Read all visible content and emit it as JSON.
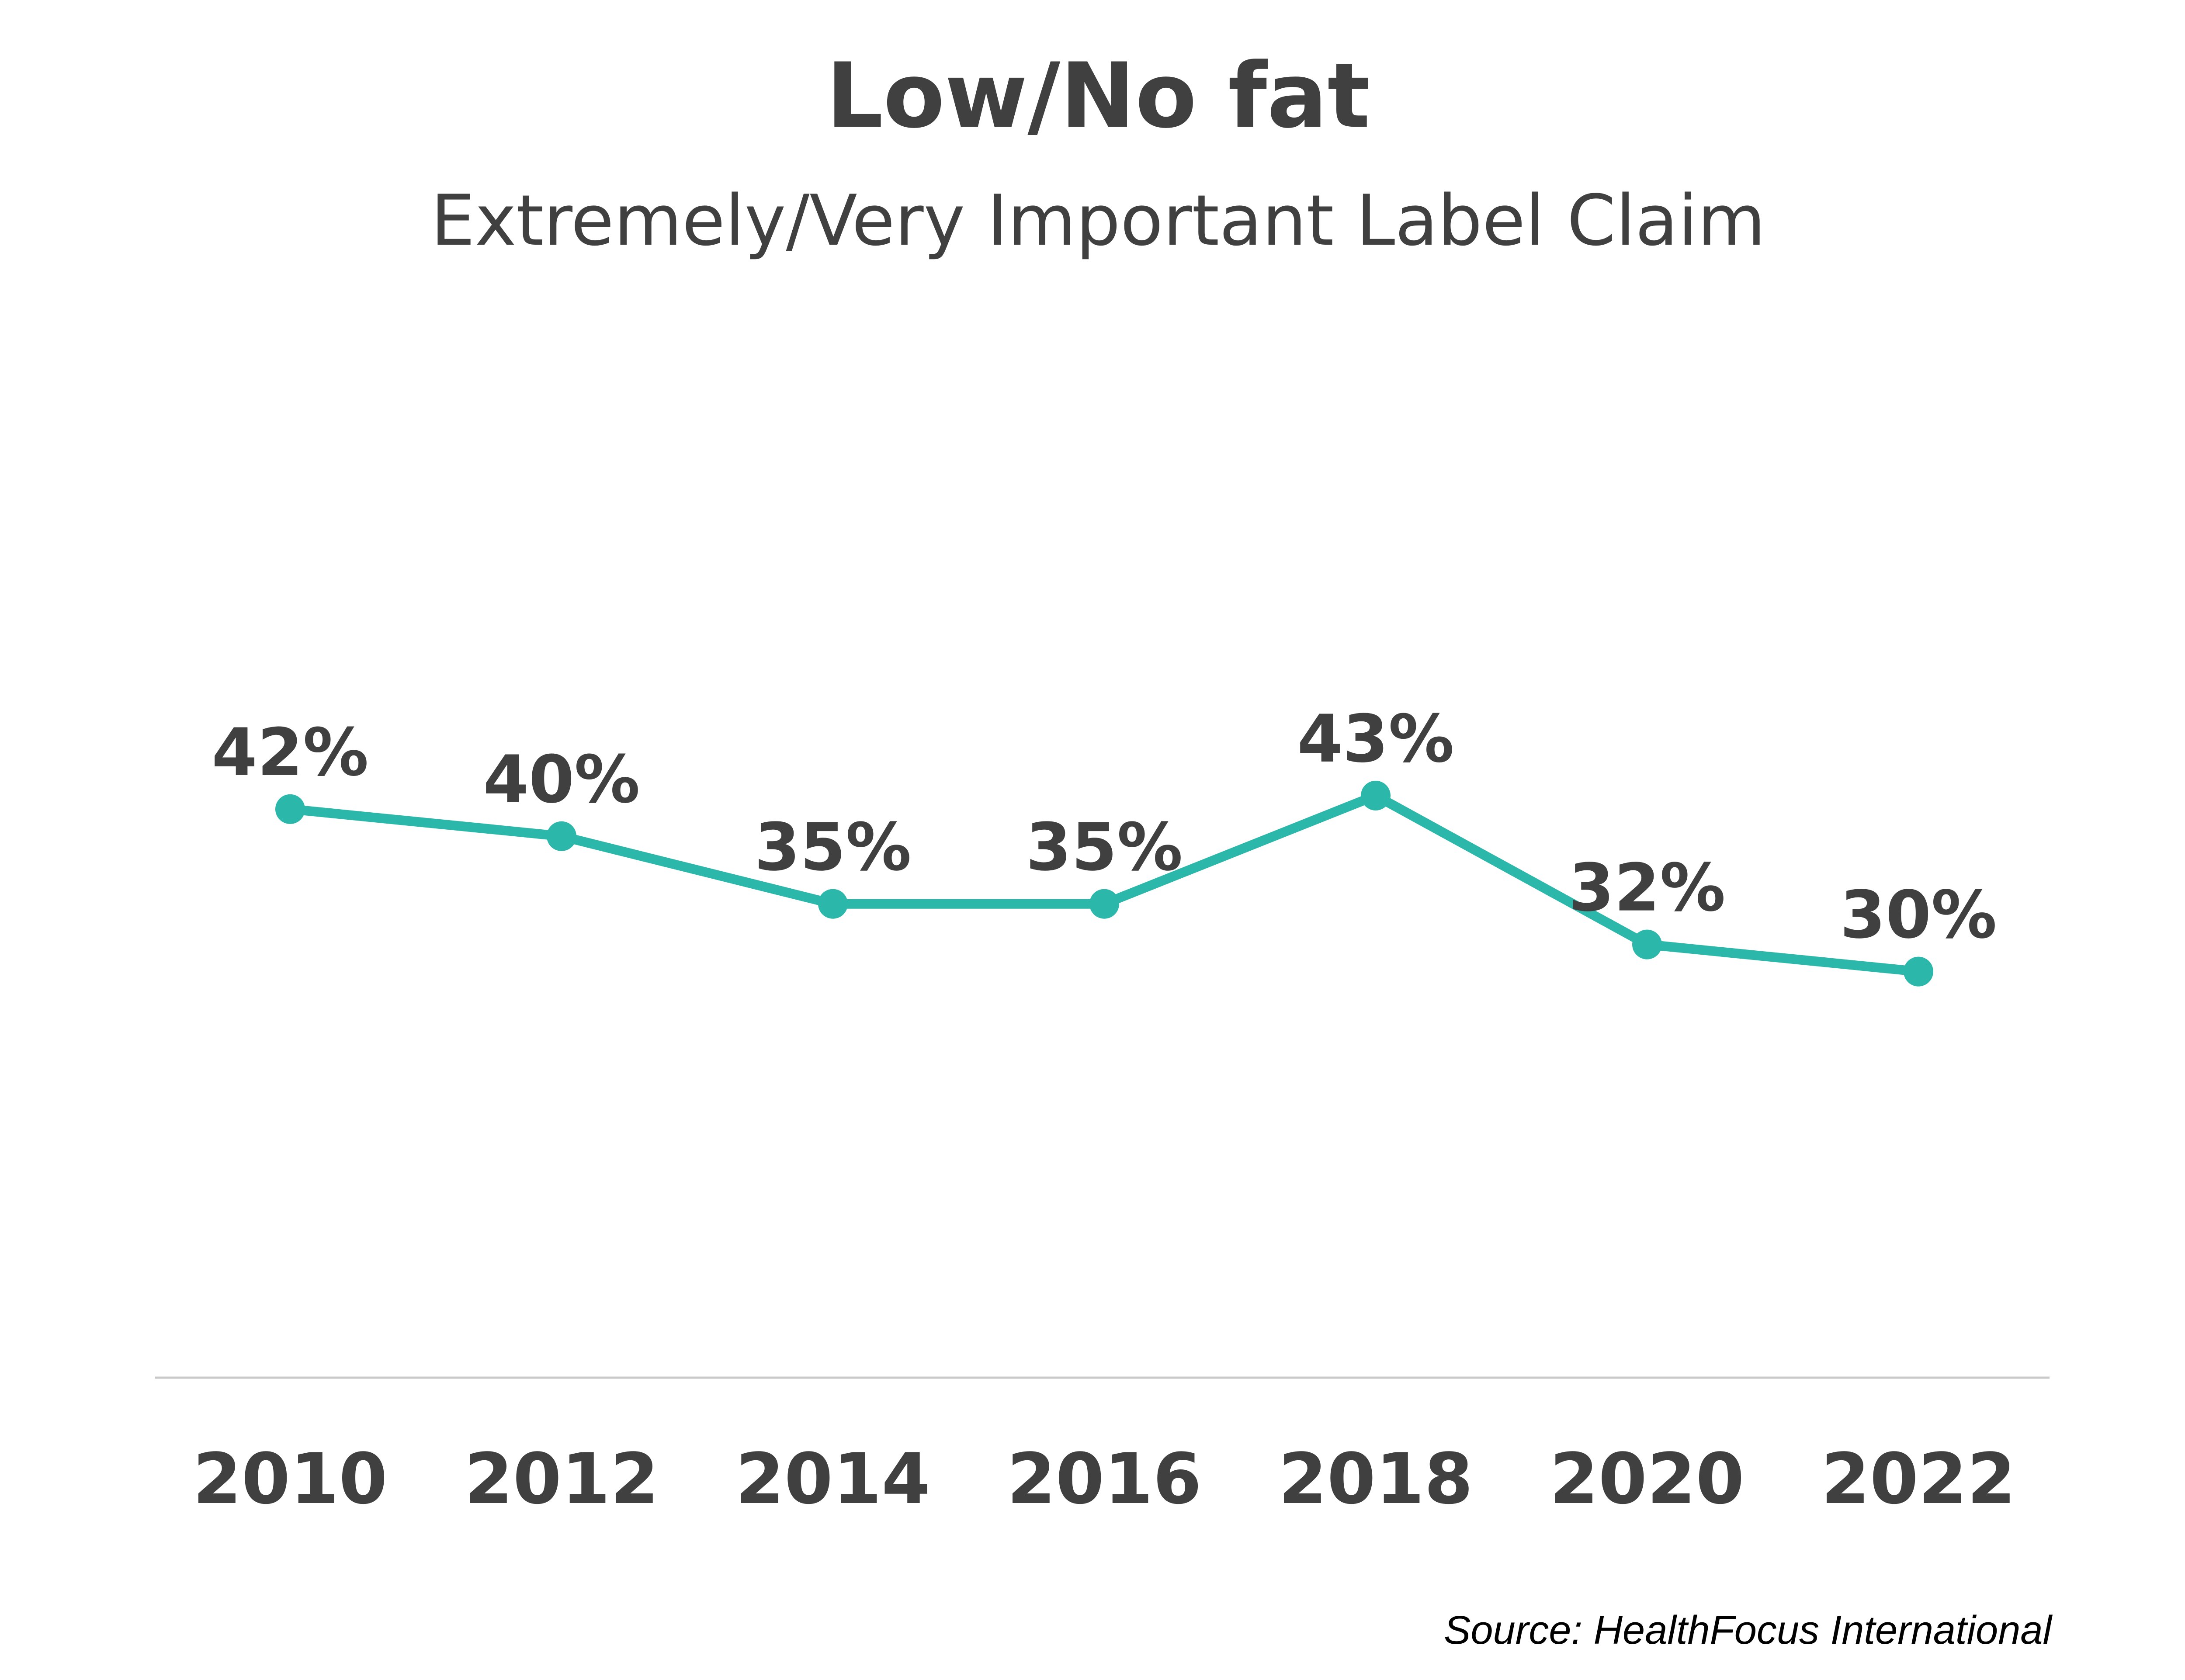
{
  "chart_data": {
    "type": "line",
    "title": "Low/No fat",
    "subtitle": "Extremely/Very Important Label Claim",
    "categories": [
      "2010",
      "2012",
      "2014",
      "2016",
      "2018",
      "2020",
      "2022"
    ],
    "series": [
      {
        "values": [
          42,
          40,
          35,
          35,
          43,
          32,
          30
        ],
        "labels": [
          "42%",
          "40%",
          "35%",
          "35%",
          "43%",
          "32%",
          "30%"
        ],
        "color": "#2bb8aa"
      }
    ],
    "ylim": [
      0,
      100
    ],
    "grid": false,
    "legend": "none",
    "source": "Source: HealthFocus International"
  }
}
